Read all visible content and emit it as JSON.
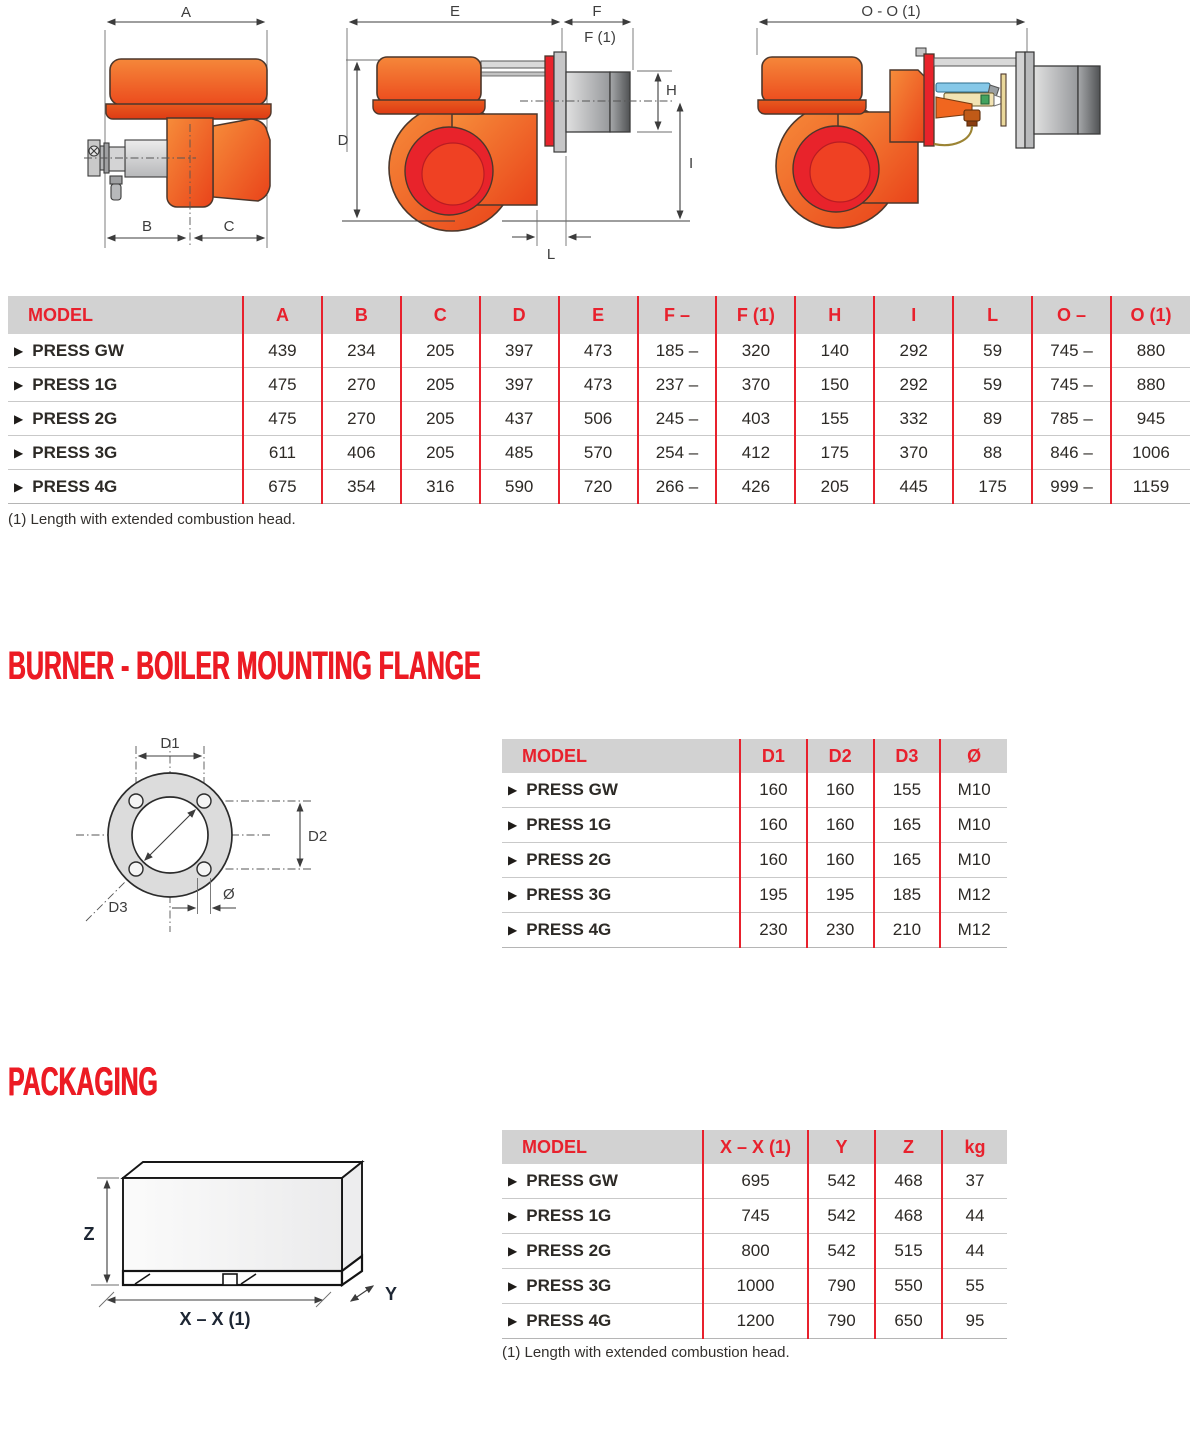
{
  "row_marker": "▶",
  "colors": {
    "accent_red": "#e8212d",
    "heading_red": "#ec1b24",
    "table_header_bg": "#d2d2d2",
    "burner_orange": "#f0591f",
    "fan_red": "#e8232b"
  },
  "drawings": {
    "front": {
      "a": "A",
      "b": "B",
      "c": "C"
    },
    "side": {
      "d": "D",
      "e": "E",
      "f": "F",
      "f1": "F (1)",
      "h": "H",
      "i": "I",
      "l": "L"
    },
    "open": {
      "oo": "O - O (1)"
    },
    "flange": {
      "d1": "D1",
      "d2": "D2",
      "d3": "D3",
      "dia": "Ø"
    },
    "pack": {
      "x": "X – X (1)",
      "y": "Y",
      "z": "Z"
    }
  },
  "dimensions_table": {
    "headers": [
      "MODEL",
      "A",
      "B",
      "C",
      "D",
      "E",
      "F –",
      "F (1)",
      "H",
      "I",
      "L",
      "O –",
      "O (1)"
    ],
    "rows": [
      [
        "PRESS GW",
        "439",
        "234",
        "205",
        "397",
        "473",
        "185 –",
        "320",
        "140",
        "292",
        "59",
        "745 –",
        "880"
      ],
      [
        "PRESS 1G",
        "475",
        "270",
        "205",
        "397",
        "473",
        "237 –",
        "370",
        "150",
        "292",
        "59",
        "745 –",
        "880"
      ],
      [
        "PRESS 2G",
        "475",
        "270",
        "205",
        "437",
        "506",
        "245 –",
        "403",
        "155",
        "332",
        "89",
        "785 –",
        "945"
      ],
      [
        "PRESS 3G",
        "611",
        "406",
        "205",
        "485",
        "570",
        "254 –",
        "412",
        "175",
        "370",
        "88",
        "846 –",
        "1006"
      ],
      [
        "PRESS 4G",
        "675",
        "354",
        "316",
        "590",
        "720",
        "266 –",
        "426",
        "205",
        "445",
        "175",
        "999 –",
        "1159"
      ]
    ],
    "footnote": "(1) Length with extended combustion head."
  },
  "flange_section": {
    "heading": "BURNER - BOILER MOUNTING FLANGE",
    "table": {
      "headers": [
        "MODEL",
        "D1",
        "D2",
        "D3",
        "Ø"
      ],
      "rows": [
        [
          "PRESS GW",
          "160",
          "160",
          "155",
          "M10"
        ],
        [
          "PRESS 1G",
          "160",
          "160",
          "165",
          "M10"
        ],
        [
          "PRESS 2G",
          "160",
          "160",
          "165",
          "M10"
        ],
        [
          "PRESS 3G",
          "195",
          "195",
          "185",
          "M12"
        ],
        [
          "PRESS 4G",
          "230",
          "230",
          "210",
          "M12"
        ]
      ]
    }
  },
  "packaging_section": {
    "heading": "PACKAGING",
    "table": {
      "headers": [
        "MODEL",
        "X – X (1)",
        "Y",
        "Z",
        "kg"
      ],
      "rows": [
        [
          "PRESS GW",
          "695",
          "542",
          "468",
          "37"
        ],
        [
          "PRESS 1G",
          "745",
          "542",
          "468",
          "44"
        ],
        [
          "PRESS 2G",
          "800",
          "542",
          "515",
          "44"
        ],
        [
          "PRESS 3G",
          "1000",
          "790",
          "550",
          "55"
        ],
        [
          "PRESS 4G",
          "1200",
          "790",
          "650",
          "95"
        ]
      ]
    },
    "footnote": "(1) Length with extended combustion head."
  }
}
